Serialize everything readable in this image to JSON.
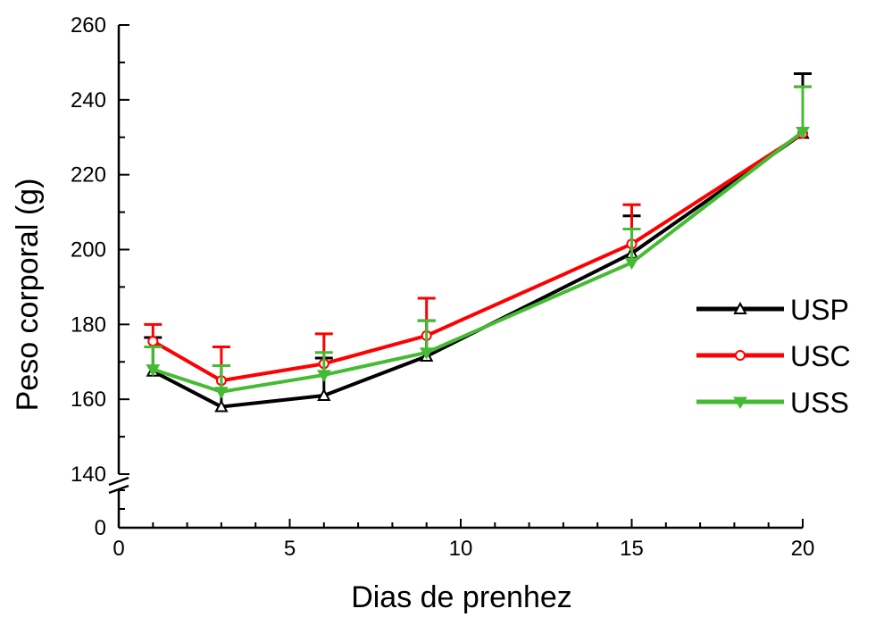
{
  "chart_data": {
    "type": "line",
    "title": "",
    "xlabel": "Dias de prenhez",
    "ylabel": "Peso corporal (g)",
    "x": [
      1,
      3,
      6,
      9,
      15,
      20
    ],
    "xlim": [
      0,
      20
    ],
    "xticks": [
      0,
      5,
      10,
      15,
      20
    ],
    "xtick_labels": [
      "0",
      "5",
      "10",
      "15",
      "20"
    ],
    "y_axis_break": {
      "lower_segment": [
        0,
        5
      ],
      "upper_segment": [
        140,
        260
      ]
    },
    "yticks": [
      0,
      140,
      160,
      180,
      200,
      220,
      240,
      260
    ],
    "ytick_labels": [
      "0",
      "140",
      "160",
      "180",
      "200",
      "220",
      "240",
      "260"
    ],
    "grid": false,
    "legend_position": "right",
    "error_bars": "upper",
    "series": [
      {
        "name": "USP",
        "color": "#000000",
        "marker": "open-triangle-up",
        "values": [
          167.5,
          158,
          161,
          171.5,
          199,
          231
        ],
        "errors_upper": [
          9,
          11,
          10,
          9.5,
          10,
          16
        ]
      },
      {
        "name": "USC",
        "color": "#ff0000",
        "marker": "open-circle",
        "values": [
          175.5,
          165,
          169.5,
          177,
          201.5,
          231
        ],
        "errors_upper": [
          4.5,
          9,
          8,
          10,
          10.5,
          12.5
        ]
      },
      {
        "name": "USS",
        "color": "#44bb33",
        "marker": "filled-triangle-down",
        "values": [
          168,
          162,
          166.5,
          172.5,
          196.5,
          231.5
        ],
        "errors_upper": [
          6,
          7,
          6,
          8.5,
          9,
          12
        ]
      }
    ]
  }
}
